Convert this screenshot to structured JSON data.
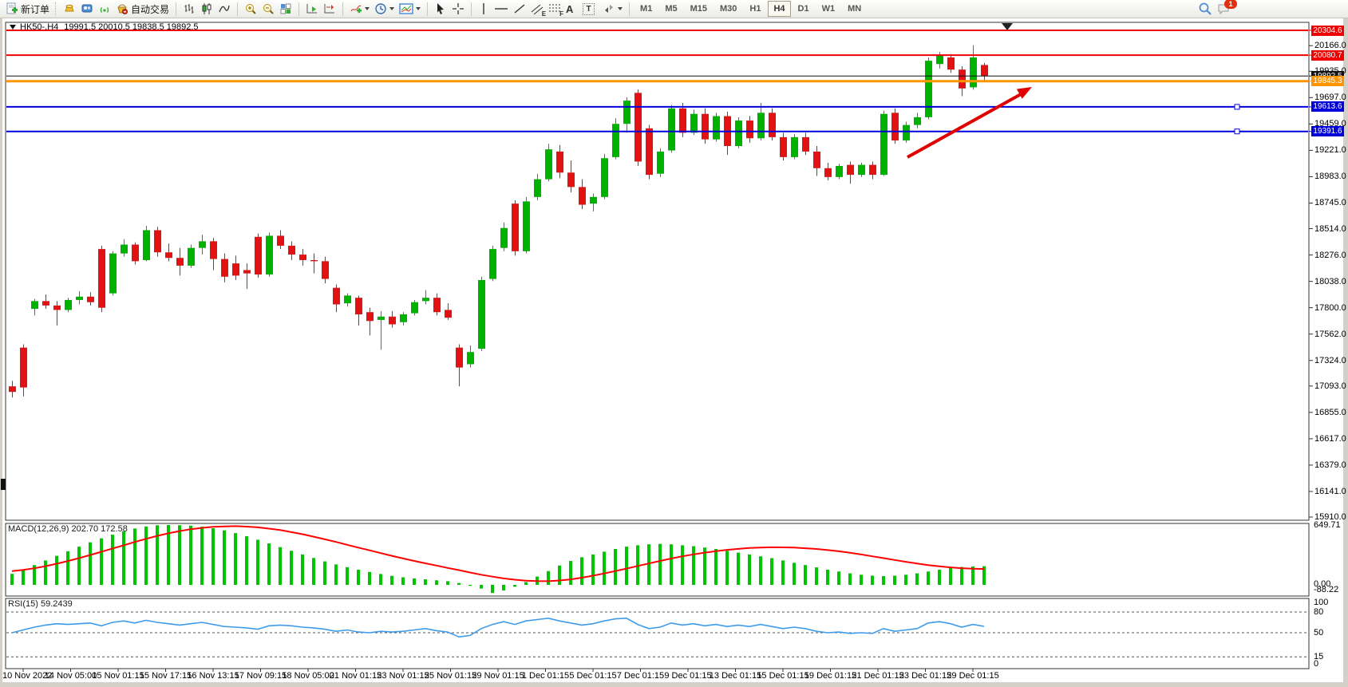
{
  "toolbar": {
    "new_order_label": "新订单",
    "auto_trading_label": "自动交易",
    "icon_letters": {
      "channel": "E",
      "fibonacci": "F",
      "text": "A",
      "text_label": "T"
    },
    "timeframes": [
      "M1",
      "M5",
      "M15",
      "M30",
      "H1",
      "H4",
      "D1",
      "W1",
      "MN"
    ],
    "active_timeframe": "H4",
    "notification_badge": "1"
  },
  "chart": {
    "symbol_period": "HK50-,H4",
    "ohlc": "19991.5 20010.5 19838.5 19892.5",
    "colors": {
      "up": "#00b200",
      "down": "#e01212",
      "macd_hist": "#00c400",
      "macd_signal": "#ff0000",
      "rsi": "#3e9be9",
      "level_red": "#ee0000",
      "level_orange": "#ff9500",
      "level_blue": "#0000dd",
      "bid": "#111111",
      "arrow": "#e00000"
    },
    "price_ticks": [
      "20166.0",
      "19935.0",
      "19697.0",
      "19459.0",
      "19221.0",
      "18983.0",
      "18745.0",
      "18514.0",
      "18276.0",
      "18038.0",
      "17800.0",
      "17562.0",
      "17324.0",
      "17093.0",
      "16855.0",
      "16617.0",
      "16379.0",
      "16141.0",
      "15910.0"
    ],
    "levels": [
      {
        "name": "resistance-line-upper",
        "value": 20304.6,
        "label": "20304.6",
        "color": "#ee0000",
        "width": 2
      },
      {
        "name": "resistance-line",
        "value": 20080.7,
        "label": "20080.7",
        "color": "#ee0000",
        "width": 2
      },
      {
        "name": "bid-price-line",
        "value": 19892.5,
        "label": "19892.5",
        "color": "#111111",
        "width": 1
      },
      {
        "name": "orange-level-line",
        "value": 19845.3,
        "label": "19845.3",
        "color": "#ff9500",
        "width": 3
      },
      {
        "name": "support-line-upper",
        "value": 19613.6,
        "label": "19613.6",
        "color": "#0000dd",
        "width": 2,
        "handle": true
      },
      {
        "name": "support-line-lower",
        "value": 19391.6,
        "label": "19391.6",
        "color": "#0000dd",
        "width": 2,
        "handle": true
      }
    ],
    "time_labels": [
      "10 Nov 2022",
      "14 Nov 05:00",
      "15 Nov 01:15",
      "15 Nov 17:15",
      "16 Nov 13:15",
      "17 Nov 09:15",
      "18 Nov 05:00",
      "21 Nov 01:15",
      "23 Nov 01:15",
      "25 Nov 01:15",
      "29 Nov 01:15",
      "1 Dec 01:15",
      "5 Dec 01:15",
      "7 Dec 01:15",
      "9 Dec 01:15",
      "13 Dec 01:15",
      "15 Dec 01:15",
      "19 Dec 01:15",
      "21 Dec 01:15",
      "23 Dec 01:15",
      "29 Dec 01:15"
    ],
    "candles": [
      [
        17090,
        17140,
        16990,
        17040
      ],
      [
        17440,
        17470,
        17000,
        17080
      ],
      [
        17790,
        17880,
        17730,
        17860
      ],
      [
        17860,
        17920,
        17790,
        17820
      ],
      [
        17820,
        17860,
        17640,
        17780
      ],
      [
        17780,
        17890,
        17760,
        17870
      ],
      [
        17870,
        17950,
        17830,
        17900
      ],
      [
        17900,
        17940,
        17820,
        17850
      ],
      [
        18330,
        18360,
        17760,
        17800
      ],
      [
        17930,
        18310,
        17910,
        18290
      ],
      [
        18290,
        18420,
        18260,
        18370
      ],
      [
        18370,
        18390,
        18190,
        18220
      ],
      [
        18230,
        18540,
        18220,
        18500
      ],
      [
        18500,
        18530,
        18260,
        18300
      ],
      [
        18300,
        18380,
        18220,
        18250
      ],
      [
        18250,
        18340,
        18090,
        18180
      ],
      [
        18180,
        18370,
        18160,
        18340
      ],
      [
        18340,
        18460,
        18280,
        18400
      ],
      [
        18400,
        18430,
        18140,
        18240
      ],
      [
        18240,
        18290,
        18030,
        18080
      ],
      [
        18200,
        18270,
        18050,
        18090
      ],
      [
        18140,
        18200,
        17970,
        18110
      ],
      [
        18440,
        18470,
        18070,
        18100
      ],
      [
        18100,
        18480,
        18080,
        18450
      ],
      [
        18450,
        18500,
        18330,
        18360
      ],
      [
        18360,
        18400,
        18230,
        18280
      ],
      [
        18280,
        18330,
        18180,
        18230
      ],
      [
        18230,
        18290,
        18110,
        18220
      ],
      [
        18220,
        18260,
        18020,
        18060
      ],
      [
        17980,
        18010,
        17760,
        17830
      ],
      [
        17840,
        17930,
        17810,
        17910
      ],
      [
        17890,
        17910,
        17640,
        17740
      ],
      [
        17760,
        17800,
        17550,
        17680
      ],
      [
        17690,
        17770,
        17420,
        17720
      ],
      [
        17720,
        17770,
        17620,
        17650
      ],
      [
        17670,
        17760,
        17640,
        17740
      ],
      [
        17750,
        17870,
        17730,
        17850
      ],
      [
        17860,
        17960,
        17830,
        17890
      ],
      [
        17890,
        17930,
        17730,
        17760
      ],
      [
        17780,
        17840,
        17690,
        17710
      ],
      [
        17440,
        17470,
        17090,
        17260
      ],
      [
        17290,
        17460,
        17260,
        17400
      ],
      [
        17430,
        18080,
        17410,
        18050
      ],
      [
        18060,
        18360,
        18040,
        18330
      ],
      [
        18340,
        18570,
        18310,
        18520
      ],
      [
        18740,
        18770,
        18270,
        18310
      ],
      [
        18310,
        18800,
        18290,
        18760
      ],
      [
        18800,
        19010,
        18770,
        18960
      ],
      [
        18960,
        19280,
        18940,
        19230
      ],
      [
        19210,
        19270,
        18970,
        19020
      ],
      [
        19020,
        19130,
        18840,
        18890
      ],
      [
        18890,
        18960,
        18690,
        18730
      ],
      [
        18740,
        18830,
        18670,
        18800
      ],
      [
        18800,
        19190,
        18780,
        19150
      ],
      [
        19160,
        19510,
        19140,
        19460
      ],
      [
        19460,
        19700,
        19380,
        19670
      ],
      [
        19740,
        19770,
        19080,
        19120
      ],
      [
        19420,
        19450,
        18960,
        19000
      ],
      [
        19010,
        19240,
        18980,
        19210
      ],
      [
        19220,
        19630,
        19200,
        19600
      ],
      [
        19600,
        19650,
        19340,
        19380
      ],
      [
        19380,
        19590,
        19360,
        19550
      ],
      [
        19550,
        19600,
        19280,
        19320
      ],
      [
        19320,
        19560,
        19300,
        19530
      ],
      [
        19530,
        19570,
        19180,
        19260
      ],
      [
        19260,
        19520,
        19240,
        19490
      ],
      [
        19490,
        19530,
        19290,
        19330
      ],
      [
        19330,
        19650,
        19310,
        19560
      ],
      [
        19560,
        19600,
        19310,
        19340
      ],
      [
        19340,
        19380,
        19130,
        19160
      ],
      [
        19160,
        19370,
        19140,
        19340
      ],
      [
        19340,
        19380,
        19180,
        19210
      ],
      [
        19210,
        19260,
        18990,
        19060
      ],
      [
        19060,
        19110,
        18950,
        18980
      ],
      [
        18980,
        19100,
        18960,
        19080
      ],
      [
        19090,
        19120,
        18920,
        19000
      ],
      [
        19000,
        19110,
        18980,
        19090
      ],
      [
        19090,
        19120,
        18960,
        19000
      ],
      [
        19000,
        19580,
        18990,
        19550
      ],
      [
        19560,
        19600,
        19280,
        19310
      ],
      [
        19310,
        19480,
        19290,
        19450
      ],
      [
        19450,
        19560,
        19420,
        19520
      ],
      [
        19520,
        20060,
        19500,
        20030
      ],
      [
        20000,
        20110,
        19960,
        20080
      ],
      [
        20060,
        20090,
        19920,
        19950
      ],
      [
        19950,
        19980,
        19710,
        19780
      ],
      [
        19790,
        20170,
        19770,
        20060
      ],
      [
        19991.5,
        20010.5,
        19838.5,
        19892.5
      ]
    ]
  },
  "macd": {
    "label": "MACD(12,26,9) 202.70 172.58",
    "axis": [
      "649.71",
      "0.00",
      "-88.22"
    ],
    "histogram": [
      120,
      165,
      215,
      265,
      315,
      365,
      415,
      462,
      505,
      545,
      582,
      612,
      634,
      647,
      650,
      648,
      643,
      632,
      615,
      592,
      562,
      528,
      490,
      450,
      410,
      370,
      330,
      292,
      255,
      222,
      192,
      165,
      140,
      118,
      98,
      82,
      70,
      60,
      50,
      40,
      20,
      -10,
      -40,
      -88,
      -60,
      -20,
      30,
      90,
      150,
      210,
      260,
      300,
      330,
      360,
      390,
      415,
      430,
      440,
      445,
      440,
      430,
      420,
      405,
      390,
      370,
      350,
      330,
      310,
      290,
      265,
      240,
      215,
      190,
      165,
      145,
      125,
      110,
      100,
      95,
      100,
      110,
      125,
      145,
      165,
      185,
      195,
      200,
      202.7
    ],
    "signal": [
      150,
      163,
      180,
      203,
      230,
      259,
      290,
      324,
      360,
      395,
      430,
      466,
      500,
      532,
      560,
      584,
      605,
      619,
      630,
      635,
      638,
      633,
      625,
      611,
      595,
      573,
      550,
      523,
      495,
      466,
      435,
      405,
      375,
      345,
      315,
      287,
      260,
      234,
      210,
      184,
      160,
      134,
      110,
      89,
      70,
      56,
      45,
      41,
      40,
      48,
      60,
      78,
      100,
      124,
      150,
      177,
      205,
      232,
      260,
      286,
      310,
      331,
      350,
      366,
      380,
      391,
      400,
      405,
      408,
      407,
      405,
      398,
      390,
      378,
      365,
      348,
      330,
      310,
      290,
      270,
      250,
      232,
      215,
      201,
      190,
      181,
      175,
      172.58
    ]
  },
  "rsi": {
    "label": "RSI(15) 59.2439",
    "axis": [
      "100",
      "80",
      "50",
      "15",
      "0"
    ],
    "levels_dashed": [
      80,
      50,
      15
    ],
    "values": [
      50,
      54,
      58,
      61,
      63,
      62,
      63,
      64,
      60,
      65,
      67,
      64,
      68,
      65,
      63,
      61,
      63,
      65,
      62,
      59,
      58,
      57,
      55,
      60,
      61,
      60,
      58,
      57,
      55,
      52,
      54,
      51,
      50,
      52,
      51,
      52,
      54,
      56,
      53,
      51,
      44,
      46,
      56,
      62,
      66,
      62,
      67,
      69,
      71,
      67,
      64,
      61,
      63,
      67,
      70,
      71,
      62,
      56,
      58,
      64,
      61,
      63,
      60,
      62,
      59,
      61,
      59,
      62,
      59,
      56,
      58,
      56,
      52,
      50,
      51,
      49,
      50,
      49,
      56,
      52,
      54,
      56,
      64,
      66,
      63,
      58,
      62,
      59.24
    ]
  }
}
